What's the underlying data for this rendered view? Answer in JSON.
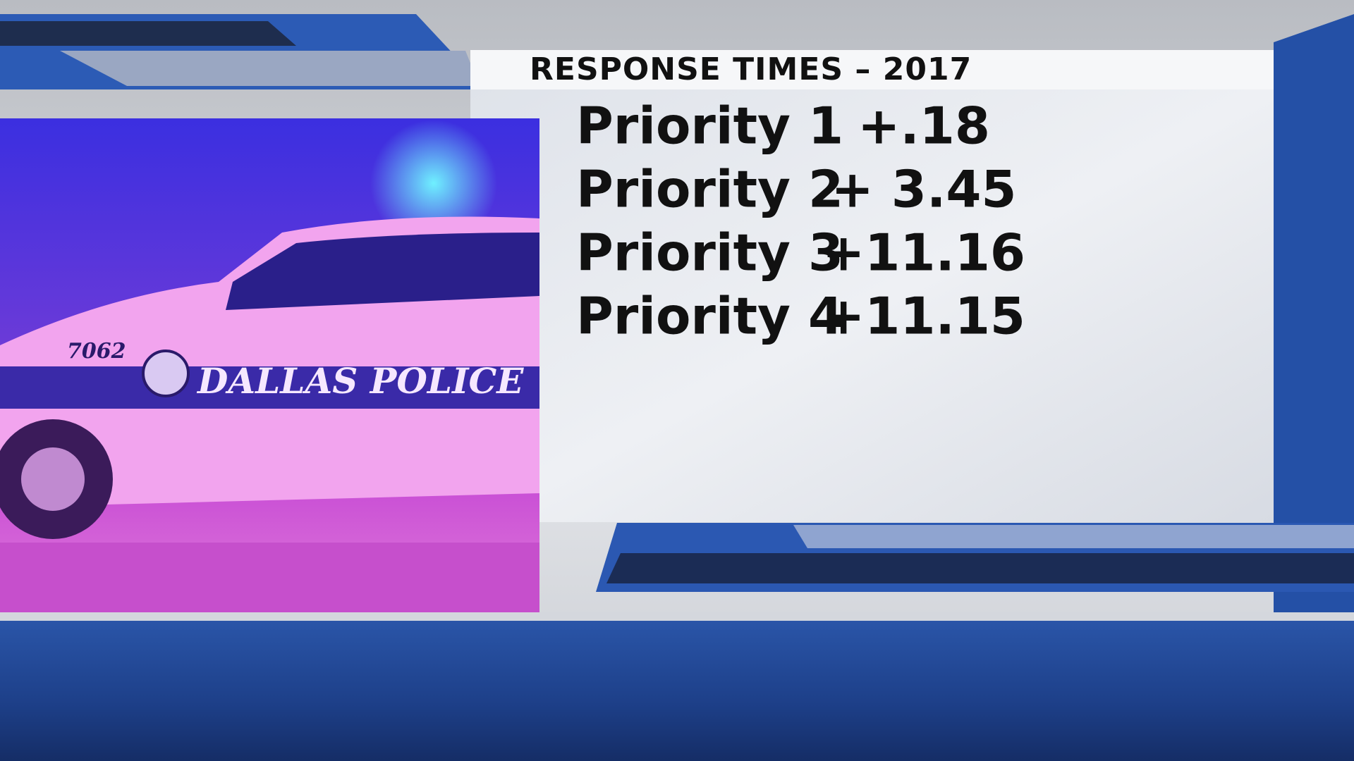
{
  "header": {
    "title": "RESPONSE TIMES –  2017"
  },
  "table": {
    "rows": [
      [
        "Priority 1",
        "+.18"
      ],
      [
        "Priority 2",
        "+ 3.45"
      ],
      [
        "Priority 3",
        "+11.16"
      ],
      [
        "Priority 4",
        "+11.15"
      ]
    ]
  },
  "photo": {
    "car_number": "7062",
    "car_text": "DALLAS POLICE"
  }
}
